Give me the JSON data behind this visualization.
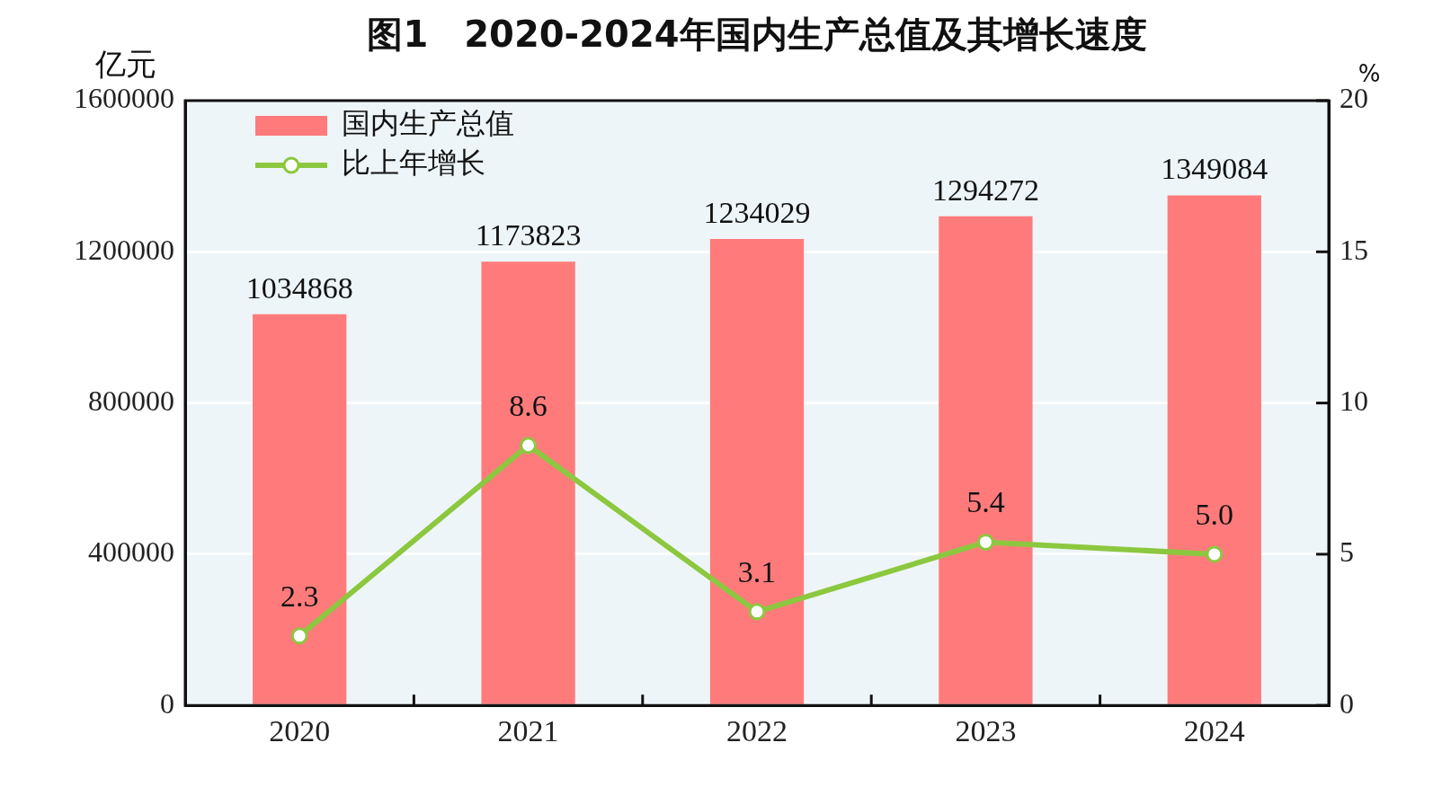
{
  "chart_data": {
    "type": "bar",
    "title": "图1　2020-2024年国内生产总值及其增长速度",
    "ylabel": "亿元",
    "y2label": "%",
    "categories": [
      "2020",
      "2021",
      "2022",
      "2023",
      "2024"
    ],
    "series": [
      {
        "name": "国内生产总值",
        "color": "#ff7b7b",
        "values": [
          1034868,
          1173823,
          1234029,
          1294272,
          1349084
        ],
        "value_labels": [
          "1034868",
          "1173823",
          "1234029",
          "1294272",
          "1349084"
        ]
      },
      {
        "name": "比上年增长",
        "type": "line",
        "axis": "y2",
        "color": "#8cc83f",
        "values": [
          2.3,
          8.6,
          3.1,
          5.4,
          5.0
        ],
        "value_labels": [
          "2.3",
          "8.6",
          "3.1",
          "5.4",
          "5.0"
        ]
      }
    ],
    "ylim": [
      0,
      1600000
    ],
    "yticks": [
      0,
      400000,
      800000,
      1200000,
      1600000
    ],
    "y2lim": [
      0,
      20
    ],
    "y2ticks": [
      0,
      5,
      10,
      15,
      20
    ],
    "grid": "y",
    "legend": "top left",
    "marker": "circle"
  }
}
